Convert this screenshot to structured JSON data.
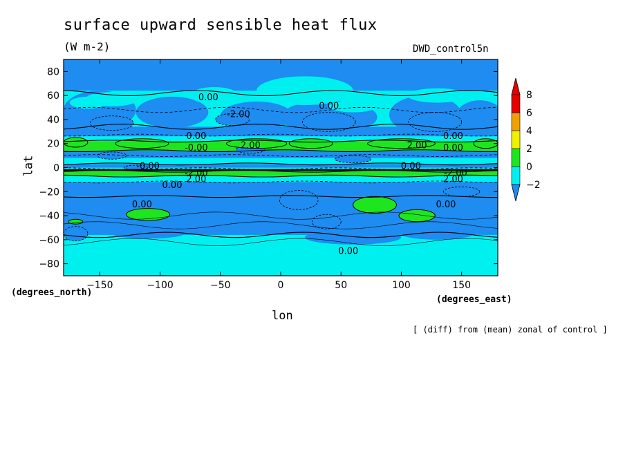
{
  "chart_data": {
    "type": "heatmap",
    "title": "surface upward sensible heat flux",
    "units": "(W m-2)",
    "run_label": "DWD_control5n",
    "xlabel": "lon",
    "ylabel": "lat",
    "x_unit": "(degrees_east)",
    "y_unit": "(degrees_north)",
    "footnote": "[ (diff) from (mean) zonal of control ]",
    "xlim": [
      -180,
      180
    ],
    "ylim": [
      -90,
      90
    ],
    "x_ticks": [
      -150,
      -100,
      -50,
      0,
      50,
      100,
      150
    ],
    "y_ticks": [
      -80,
      -60,
      -40,
      -20,
      0,
      20,
      40,
      60,
      80
    ],
    "colorbar": {
      "levels": [
        -2,
        0,
        2,
        4,
        6,
        8
      ],
      "tick_labels": [
        "-2",
        "0",
        "2",
        "4",
        "6",
        "8"
      ],
      "colors": [
        "#1e8cf0",
        "#00f0f0",
        "#1ee61e",
        "#f0f000",
        "#f0a000",
        "#e60000"
      ],
      "under_color": "#1e8cf0",
      "over_color": "#e60000"
    },
    "contour_labels": [
      {
        "text": "0.00",
        "lon": -60,
        "lat": 58
      },
      {
        "text": "-2.00",
        "lon": -35,
        "lat": 44
      },
      {
        "text": "0.00",
        "lon": 40,
        "lat": 51
      },
      {
        "text": "0.00",
        "lon": -70,
        "lat": 26
      },
      {
        "text": "-0.00",
        "lon": -70,
        "lat": 16
      },
      {
        "text": "2.00",
        "lon": -25,
        "lat": 18
      },
      {
        "text": "2.00",
        "lon": 113,
        "lat": 18
      },
      {
        "text": "0.00",
        "lon": 143,
        "lat": 26
      },
      {
        "text": "0.00",
        "lon": 143,
        "lat": 16
      },
      {
        "text": "-0.00",
        "lon": -110,
        "lat": 1
      },
      {
        "text": "0.00",
        "lon": 108,
        "lat": 1
      },
      {
        "text": "-2.00",
        "lon": -70,
        "lat": -5
      },
      {
        "text": "2.00",
        "lon": -70,
        "lat": -10
      },
      {
        "text": "-2.00",
        "lon": 145,
        "lat": -5
      },
      {
        "text": "2.00",
        "lon": 143,
        "lat": -10
      },
      {
        "text": "0.00",
        "lon": -90,
        "lat": -15
      },
      {
        "text": "0.00",
        "lon": -115,
        "lat": -31
      },
      {
        "text": "0.00",
        "lon": 137,
        "lat": -31
      },
      {
        "text": "0.00",
        "lon": 56,
        "lat": -70
      }
    ]
  }
}
